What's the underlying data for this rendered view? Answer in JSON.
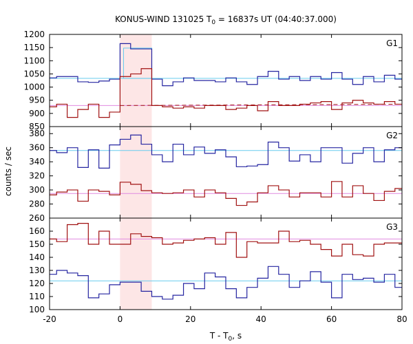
{
  "chart_data": {
    "type": "line",
    "title": "KONUS-WIND 131025 T",
    "title_sub": "0",
    "title_rest": " = 16837s UT (04:40:37.000)",
    "xlabel": "T - T",
    "xlabel_sub": "0",
    "xlabel_rest": ", s",
    "ylabel": "counts / sec",
    "xlim": [
      -20,
      80
    ],
    "x_ticks": [
      -20,
      0,
      20,
      40,
      60,
      80
    ],
    "highlight_interval": [
      0,
      9
    ],
    "highlight_color": "#fde6e6",
    "grid": false,
    "colors": {
      "blue": "#2424a0",
      "red": "#a01010",
      "cyan": "#66ccee",
      "pink": "#e08ae0"
    },
    "panels": [
      {
        "name": "G1",
        "ylim": [
          850,
          1200
        ],
        "y_ticks": [
          850,
          900,
          950,
          1000,
          1050,
          1100,
          1150,
          1200
        ],
        "bin_edges": [
          -20,
          -18,
          -15,
          -12,
          -9,
          -6,
          -3,
          0,
          3,
          6,
          9,
          12,
          15,
          18,
          21,
          24,
          27,
          30,
          33,
          36,
          39,
          42,
          45,
          48,
          51,
          54,
          57,
          60,
          63,
          66,
          69,
          72,
          75,
          78,
          80
        ],
        "blue_values": [
          1035,
          1040,
          1040,
          1020,
          1018,
          1023,
          1030,
          1165,
          1145,
          1145,
          1030,
          1005,
          1020,
          1035,
          1025,
          1025,
          1020,
          1035,
          1020,
          1010,
          1040,
          1060,
          1030,
          1040,
          1025,
          1040,
          1030,
          1055,
          1030,
          1010,
          1040,
          1020,
          1045,
          1030
        ],
        "red_values": [
          925,
          935,
          885,
          915,
          935,
          885,
          905,
          1040,
          1050,
          1070,
          930,
          925,
          920,
          925,
          920,
          930,
          930,
          915,
          920,
          930,
          910,
          945,
          930,
          930,
          935,
          940,
          945,
          915,
          940,
          950,
          940,
          935,
          945,
          935
        ],
        "blue_level": 1033,
        "red_level": 930,
        "fit_line": {
          "x": [
            0,
            80
          ],
          "y": [
            930,
            935
          ]
        },
        "peak_rect": {
          "x": [
            1,
            9
          ],
          "y": [
            1033,
            1148
          ]
        }
      },
      {
        "name": "G2",
        "ylim": [
          260,
          390
        ],
        "y_ticks": [
          260,
          280,
          300,
          320,
          340,
          360,
          380
        ],
        "bin_edges": [
          -20,
          -18,
          -15,
          -12,
          -9,
          -6,
          -3,
          0,
          3,
          6,
          9,
          12,
          15,
          18,
          21,
          24,
          27,
          30,
          33,
          36,
          39,
          42,
          45,
          48,
          51,
          54,
          57,
          60,
          63,
          66,
          69,
          72,
          75,
          78,
          80
        ],
        "blue_values": [
          356,
          353,
          360,
          332,
          357,
          331,
          364,
          372,
          378,
          365,
          350,
          340,
          365,
          350,
          361,
          352,
          357,
          347,
          333,
          334,
          336,
          368,
          360,
          341,
          350,
          340,
          360,
          360,
          338,
          352,
          360,
          340,
          357,
          360
        ],
        "red_values": [
          293,
          297,
          300,
          284,
          300,
          298,
          293,
          311,
          308,
          299,
          296,
          295,
          296,
          300,
          290,
          300,
          296,
          288,
          278,
          283,
          296,
          306,
          300,
          290,
          296,
          296,
          290,
          312,
          290,
          306,
          295,
          285,
          298,
          302
        ],
        "blue_level": 356,
        "red_level": 295
      },
      {
        "name": "G3",
        "ylim": [
          100,
          170
        ],
        "y_ticks": [
          100,
          110,
          120,
          130,
          140,
          150,
          160
        ],
        "bin_edges": [
          -20,
          -18,
          -15,
          -12,
          -9,
          -6,
          -3,
          0,
          3,
          6,
          9,
          12,
          15,
          18,
          21,
          24,
          27,
          30,
          33,
          36,
          39,
          42,
          45,
          48,
          51,
          54,
          57,
          60,
          63,
          66,
          69,
          72,
          75,
          78,
          80
        ],
        "blue_values": [
          127,
          130,
          128,
          126,
          109,
          112,
          119,
          121,
          121,
          114,
          110,
          108,
          111,
          120,
          116,
          128,
          125,
          116,
          109,
          117,
          124,
          133,
          127,
          117,
          122,
          129,
          121,
          109,
          127,
          123,
          124,
          121,
          127,
          117
        ],
        "red_values": [
          154,
          152,
          165,
          166,
          150,
          160,
          150,
          150,
          158,
          156,
          155,
          150,
          151,
          153,
          154,
          155,
          150,
          159,
          140,
          152,
          151,
          151,
          160,
          152,
          153,
          150,
          146,
          141,
          150,
          142,
          141,
          150,
          151,
          151
        ],
        "blue_level": 122,
        "red_level": 154
      }
    ]
  }
}
